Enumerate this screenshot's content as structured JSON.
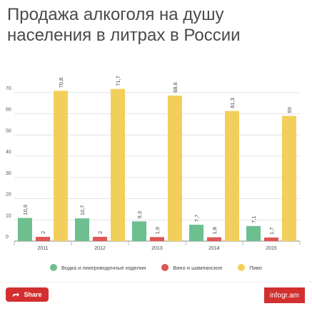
{
  "title": "Продажа алкоголя на душу населения в литрах в России",
  "footer": {
    "share_label": "Share",
    "brand_label": "infogr.am"
  },
  "chart_data": {
    "type": "bar",
    "title": "Продажа алкоголя на душу населения в литрах в России",
    "xlabel": "",
    "ylabel": "",
    "categories": [
      "2011",
      "2012",
      "2013",
      "2014",
      "2015"
    ],
    "y_ticks": [
      "0",
      "10",
      "20",
      "30",
      "40",
      "50",
      "60",
      "70"
    ],
    "ylim": [
      0,
      80
    ],
    "grid": true,
    "legend_position": "bottom",
    "series": [
      {
        "name": "Водка и ликероводочные изделия",
        "color": "#6dbf8f",
        "values": [
          10.9,
          10.7,
          9.3,
          7.7,
          7.1
        ],
        "labels": [
          "10,9",
          "10,7",
          "9,3",
          "7,7",
          "7,1"
        ]
      },
      {
        "name": "Вино и шампанское",
        "color": "#e05555",
        "values": [
          2,
          2,
          1.9,
          1.8,
          1.7
        ],
        "labels": [
          "2",
          "2",
          "1,9",
          "1,8",
          "1,7"
        ]
      },
      {
        "name": "Пиво",
        "color": "#f2cf5b",
        "values": [
          70.8,
          71.7,
          68.6,
          61.3,
          59
        ],
        "labels": [
          "70,8",
          "71,7",
          "68,6",
          "61,3",
          "59"
        ]
      }
    ]
  }
}
